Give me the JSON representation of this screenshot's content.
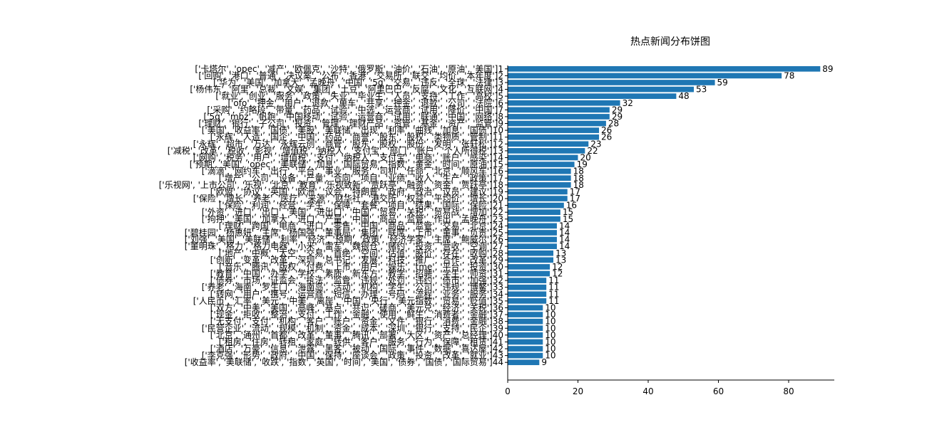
{
  "chart_data": {
    "type": "bar",
    "orientation": "horizontal",
    "title": "热点新闻分布饼图",
    "xlim": [
      0,
      93
    ],
    "xticks": [
      0,
      20,
      40,
      60,
      80
    ],
    "bar_color": "#1f77b4",
    "grid": false,
    "categories": [
      "['卡塔尔', 'opec', '减产', '欧佩克', '沙特', '俄罗斯', '油价', '石油', '原油', '美国']1",
      "['回购', '港口', '普通', '决议案', '公布', '香港', '交易所', '联交', '均价', '本年度']2",
      "['华为', '美国', '加拿大', '孟晚舟', '中国', '5g', '交易', '违反', '全球', '法律']3",
      "['杨伟东', '阿里', '总裁', '文娱', '集团', '土豆', '阿里巴巴', '反腐', '文化', '互联网']4",
      "['就业', '创业', '服务', '政策', '失业', '毕业生', '人员', '支持', '工作', '高校']5",
      "['ofo', '押金', '用户', '退款', '单车', '共享', '押金', '退款', '公司', '法院']6",
      "['采购', '约略段', '带量', '药品', '试验', '中选', '运营商', '试用', '降价', '中国']7",
      "['5g', 'mbz', '帆跑', '中国移动', '试验', '运营商', '试用', '联通', '中国', '网络']8",
      "['理财', '银行', '子公司', '投资', '管理', '理财产品', '资管', '基金', '资产', '监管']9",
      "['美国', '收益率', '国债', '美股', '美联储', '出现', '利率', '曲线', '加息', '国债']10",
      "['永辉', '人造', '国企', '中国', '药品', '商誉', '股东', '股权', '类物质', '管制']11",
      "['永辉', '超市', '万达', '永辉云创', '商管', '股东', '股权', '股份', '发明', '张轩松']12",
      "['减税', '改革', '税收', '影视', '增值税', '纳税人', '支付宝', '部门', '账户', '个人所得税']13",
      "['网购', '税务', '用户', '增值税', '支付', '纳税人', '支付宝', '电商', '账户', '感染']14",
      "['预期', '美国', 'opec', '美联储', '加息', '国际贸易', '指数', '黄金', '时间', '原油']15",
      "['滴滴', '网约车', '出行', '平台', '事业', '服务', '司机', '任命', '北京', '顺风车']16",
      "['增产', '公司', '设备', '产量', '合同', '项目', '业绩', '收入', '生产', '政策']17",
      "['乐视网', '上市公司', '乐视', '北京', '教育', '乐视致新', '贾跃亭', '融资', '资金', '贾跃亭']18",
      "['欧盟', '协议', '英国', '欧洲', '议会', '特朗普', '政府', '政治', '议员', '建议']19",
      "['保险', '增长', '养老', '医疗', '来源', '财华社', '港交所', '权益', '平均价', '增长']20",
      "['保险', '利润', '经营', '学生', '保障', '套餐', '项目', '结果', '国际', '保险']21",
      "['外资', '进口', '出口', '美国', '进出口', '中国', '贸易', '关税', '贸易战', '增加']22",
      "['拘押', '美国', '加拿大', '进口', '产量', '中国', '商品', '监管', '作出', '孟晚舟']23",
      "['理财', '跨国', '电商', '进口', '零售', '中国', '商品', '监管', '交易', '北京']24",
      "['碧桂园', '杨惠妍', '主席', '杨国强', '董事局', '集团', '联席', '上市', '董事', '负责']25",
      "['刘强', '美国', '美联储', '利率', '经济', '预期', '政策', '经济学家', '主席', '鲍威尔']26",
      "['董明珠', '格力', '格力电器', '小米', '雷军', '魏银仓', '赌约', '投资', '营收', '空调']27",
      "['地产', '中概', '太空', '交易', '首绝', '空间', '估值', '股价', '存在', '收购']28",
      "['创新', '变革', '改革', '深圳', '总书记', '发展', '科技', '推广', '合作', '改革']29",
      "['音乐', '腾讯', '版权', '付费', '上市', '用户', '娱乐', 'tme', '平台', '投资']30",
      "['教育', '中国', '办学', '学校', '素质', '新东方', '教学', '招聘', '学生', '师资']31",
      "['债券', '市场', '证监会', '执法', '监管', '违规', '处罚', '违约', '债市', '加强']32",
      "['养老', '海南', '罗生门', '海南岛', '活动', '机构', '学生', '公司', '违规', '博鳌']33",
      "['转网', '用户', '携号', '运营商', '短信', '办理', '号码', '流程', '业务', '服务']34",
      "['人民币', '汇率', '美元', '中美', '离岸', '中国', '央行', '美元指数', '贸易', '贬值']35",
      "['双方', '中美', '美国', '高峰', '基点', '共识', '磋商', '美元兑', '经济', '关税']36",
      "['现金', '拒收', '整治', '支付', '工作', '金融', '使用', '鲜生', '消费者', '金融']37",
      "['无支付', '支付', '机构', '客户', '账户', '资金', '文件', '银行', '消费', '金融']38",
      "['民营企业', '流动', '规模', '机制', '资金', '成本', '深圳', '银行', '支持', '民企']39",
      "['北京', '通州', '首都', '改革', '董事', '腾讯', '部署', '大区', '资产', '总经理']40",
      "['租房', '住房', '转租', '家庭', '转供', '客户', '服务', '行为', '保障', '租赁']41",
      "['酒店', '万豪', '信息', '泄露', '黑客', '被动', '国际', '事件', '数据', '喜达屋']42",
      "['李克强', '形势', '政府', '中国', '保持', '座谈会', '政策', '投资', '改革', '就业']43",
      "['收益率', '美联储', '收跌', '指数', '英国', '时间', '美国', '债券', '国债', '国际贸易']44"
    ],
    "values": [
      89,
      78,
      59,
      53,
      48,
      32,
      29,
      29,
      28,
      26,
      26,
      23,
      22,
      20,
      19,
      18,
      18,
      18,
      17,
      17,
      16,
      15,
      15,
      14,
      14,
      14,
      14,
      13,
      13,
      12,
      12,
      11,
      11,
      11,
      11,
      10,
      10,
      10,
      10,
      10,
      10,
      10,
      10,
      9
    ]
  }
}
